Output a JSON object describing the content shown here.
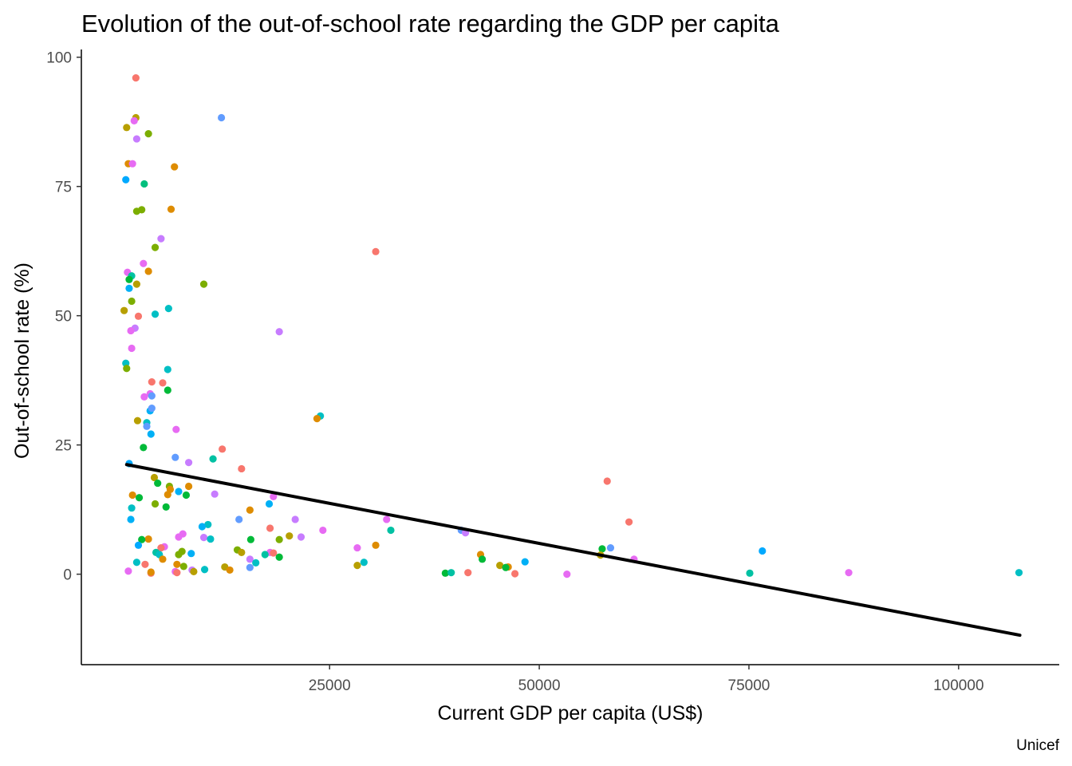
{
  "chart_data": {
    "type": "scatter",
    "title": "Evolution of the out-of-school rate regarding the GDP per capita",
    "xlabel": "Current GDP per capita (US$)",
    "ylabel": "Out-of-school rate (%)",
    "caption": "Unicef",
    "xlim": [
      -4600,
      112000
    ],
    "ylim": [
      -17.5,
      101.5
    ],
    "xticks": [
      25000,
      50000,
      75000,
      100000
    ],
    "yticks": [
      0,
      25,
      50,
      75,
      100
    ],
    "xtick_labels": [
      "25000",
      "50000",
      "75000",
      "100000"
    ],
    "ytick_labels": [
      "0",
      "25",
      "50",
      "75",
      "100"
    ],
    "grid": false,
    "legend": "none",
    "trend_line": {
      "x": [
        800,
        107300
      ],
      "y": [
        21.2,
        -11.8
      ],
      "color": "#000000"
    },
    "points": [
      {
        "x": 1900,
        "y": 96,
        "color": "#F8766D"
      },
      {
        "x": 12100,
        "y": 88.3,
        "color": "#619CFF"
      },
      {
        "x": 1900,
        "y": 88.3,
        "color": "#B79F00"
      },
      {
        "x": 1700,
        "y": 87.7,
        "color": "#E76BF3"
      },
      {
        "x": 800,
        "y": 86.4,
        "color": "#B79F00"
      },
      {
        "x": 3400,
        "y": 85.2,
        "color": "#7CAE00"
      },
      {
        "x": 2000,
        "y": 84.2,
        "color": "#C77CFF"
      },
      {
        "x": 1000,
        "y": 79.4,
        "color": "#DE8C00"
      },
      {
        "x": 1500,
        "y": 79.4,
        "color": "#E76BF3"
      },
      {
        "x": 6500,
        "y": 78.8,
        "color": "#DE8C00"
      },
      {
        "x": 700,
        "y": 76.3,
        "color": "#00A9FF"
      },
      {
        "x": 2900,
        "y": 75.5,
        "color": "#00BF7D"
      },
      {
        "x": 2000,
        "y": 70.2,
        "color": "#7CAE00"
      },
      {
        "x": 2600,
        "y": 70.5,
        "color": "#7CAE00"
      },
      {
        "x": 6100,
        "y": 70.6,
        "color": "#DE8C00"
      },
      {
        "x": 4900,
        "y": 64.9,
        "color": "#C77CFF"
      },
      {
        "x": 4200,
        "y": 63.2,
        "color": "#7CAE00"
      },
      {
        "x": 30500,
        "y": 62.4,
        "color": "#F8766D"
      },
      {
        "x": 2800,
        "y": 60.1,
        "color": "#E76BF3"
      },
      {
        "x": 3400,
        "y": 58.6,
        "color": "#DE8C00"
      },
      {
        "x": 900,
        "y": 58.4,
        "color": "#E76BF3"
      },
      {
        "x": 1400,
        "y": 57.7,
        "color": "#00C1A3"
      },
      {
        "x": 1100,
        "y": 57,
        "color": "#00BA38"
      },
      {
        "x": 10000,
        "y": 56.1,
        "color": "#7CAE00"
      },
      {
        "x": 2000,
        "y": 56.1,
        "color": "#B79F00"
      },
      {
        "x": 1100,
        "y": 55.3,
        "color": "#00B0F6"
      },
      {
        "x": 1400,
        "y": 52.8,
        "color": "#7CAE00"
      },
      {
        "x": 5800,
        "y": 51.4,
        "color": "#00BFC4"
      },
      {
        "x": 500,
        "y": 51,
        "color": "#B79F00"
      },
      {
        "x": 4200,
        "y": 50.3,
        "color": "#00BFC4"
      },
      {
        "x": 2200,
        "y": 49.9,
        "color": "#F8766D"
      },
      {
        "x": 1800,
        "y": 47.6,
        "color": "#C77CFF"
      },
      {
        "x": 1300,
        "y": 47.1,
        "color": "#E76BF3"
      },
      {
        "x": 19000,
        "y": 46.9,
        "color": "#C77CFF"
      },
      {
        "x": 1400,
        "y": 43.7,
        "color": "#E76BF3"
      },
      {
        "x": 700,
        "y": 40.8,
        "color": "#00BFC4"
      },
      {
        "x": 800,
        "y": 39.8,
        "color": "#7CAE00"
      },
      {
        "x": 5700,
        "y": 39.6,
        "color": "#00BFC4"
      },
      {
        "x": 3800,
        "y": 37.2,
        "color": "#F8766D"
      },
      {
        "x": 5100,
        "y": 37,
        "color": "#F8766D"
      },
      {
        "x": 5700,
        "y": 35.6,
        "color": "#00BA38"
      },
      {
        "x": 3600,
        "y": 34.9,
        "color": "#E76BF3"
      },
      {
        "x": 3800,
        "y": 34.5,
        "color": "#619CFF"
      },
      {
        "x": 2900,
        "y": 34.3,
        "color": "#E76BF3"
      },
      {
        "x": 3600,
        "y": 31.6,
        "color": "#00B0F6"
      },
      {
        "x": 3800,
        "y": 32.1,
        "color": "#619CFF"
      },
      {
        "x": 23900,
        "y": 30.6,
        "color": "#00BFC4"
      },
      {
        "x": 23500,
        "y": 30.1,
        "color": "#DE8C00"
      },
      {
        "x": 2100,
        "y": 29.7,
        "color": "#B79F00"
      },
      {
        "x": 3200,
        "y": 29.3,
        "color": "#00BFC4"
      },
      {
        "x": 3200,
        "y": 28.6,
        "color": "#619CFF"
      },
      {
        "x": 6700,
        "y": 28,
        "color": "#E76BF3"
      },
      {
        "x": 3700,
        "y": 27.1,
        "color": "#00B0F6"
      },
      {
        "x": 2800,
        "y": 24.5,
        "color": "#00BA38"
      },
      {
        "x": 12200,
        "y": 24.2,
        "color": "#F8766D"
      },
      {
        "x": 6600,
        "y": 22.6,
        "color": "#619CFF"
      },
      {
        "x": 11100,
        "y": 22.3,
        "color": "#00C1A3"
      },
      {
        "x": 8200,
        "y": 21.6,
        "color": "#C77CFF"
      },
      {
        "x": 1100,
        "y": 21.4,
        "color": "#00A9FF"
      },
      {
        "x": 14500,
        "y": 20.4,
        "color": "#F8766D"
      },
      {
        "x": 4100,
        "y": 18.7,
        "color": "#B79F00"
      },
      {
        "x": 58100,
        "y": 18,
        "color": "#F8766D"
      },
      {
        "x": 4500,
        "y": 17.6,
        "color": "#00BA38"
      },
      {
        "x": 5900,
        "y": 17,
        "color": "#7CAE00"
      },
      {
        "x": 8200,
        "y": 17,
        "color": "#DE8C00"
      },
      {
        "x": 6000,
        "y": 16.4,
        "color": "#DE8C00"
      },
      {
        "x": 7000,
        "y": 16,
        "color": "#00B0F6"
      },
      {
        "x": 5700,
        "y": 15.4,
        "color": "#DE8C00"
      },
      {
        "x": 7900,
        "y": 15.3,
        "color": "#00BA38"
      },
      {
        "x": 1500,
        "y": 15.3,
        "color": "#DE8C00"
      },
      {
        "x": 11300,
        "y": 15.5,
        "color": "#C77CFF"
      },
      {
        "x": 18300,
        "y": 15,
        "color": "#E76BF3"
      },
      {
        "x": 2300,
        "y": 14.8,
        "color": "#00BA38"
      },
      {
        "x": 17800,
        "y": 13.6,
        "color": "#00B0F6"
      },
      {
        "x": 4200,
        "y": 13.6,
        "color": "#7CAE00"
      },
      {
        "x": 5500,
        "y": 13,
        "color": "#00BA38"
      },
      {
        "x": 1400,
        "y": 12.8,
        "color": "#00BFC4"
      },
      {
        "x": 15500,
        "y": 12.4,
        "color": "#DE8C00"
      },
      {
        "x": 1300,
        "y": 10.6,
        "color": "#00B0F6"
      },
      {
        "x": 14200,
        "y": 10.6,
        "color": "#619CFF"
      },
      {
        "x": 20900,
        "y": 10.6,
        "color": "#C77CFF"
      },
      {
        "x": 31800,
        "y": 10.6,
        "color": "#E76BF3"
      },
      {
        "x": 60700,
        "y": 10.1,
        "color": "#F8766D"
      },
      {
        "x": 10500,
        "y": 9.6,
        "color": "#00BFC4"
      },
      {
        "x": 9800,
        "y": 9.2,
        "color": "#00B0F6"
      },
      {
        "x": 17900,
        "y": 8.9,
        "color": "#F8766D"
      },
      {
        "x": 32300,
        "y": 8.5,
        "color": "#00C1A3"
      },
      {
        "x": 24200,
        "y": 8.5,
        "color": "#E76BF3"
      },
      {
        "x": 40700,
        "y": 8.5,
        "color": "#619CFF"
      },
      {
        "x": 41200,
        "y": 8,
        "color": "#C77CFF"
      },
      {
        "x": 7500,
        "y": 7.8,
        "color": "#E76BF3"
      },
      {
        "x": 7000,
        "y": 7.2,
        "color": "#E76BF3"
      },
      {
        "x": 20200,
        "y": 7.4,
        "color": "#B79F00"
      },
      {
        "x": 21600,
        "y": 7.2,
        "color": "#C77CFF"
      },
      {
        "x": 10000,
        "y": 7.1,
        "color": "#C77CFF"
      },
      {
        "x": 10800,
        "y": 6.8,
        "color": "#00BFC4"
      },
      {
        "x": 15600,
        "y": 6.7,
        "color": "#00BA38"
      },
      {
        "x": 3400,
        "y": 6.8,
        "color": "#DE8C00"
      },
      {
        "x": 2600,
        "y": 6.7,
        "color": "#00BA38"
      },
      {
        "x": 19000,
        "y": 6.7,
        "color": "#7CAE00"
      },
      {
        "x": 2200,
        "y": 5.6,
        "color": "#00A9FF"
      },
      {
        "x": 5300,
        "y": 5.3,
        "color": "#E76BF3"
      },
      {
        "x": 4900,
        "y": 5.1,
        "color": "#F8766D"
      },
      {
        "x": 30500,
        "y": 5.6,
        "color": "#DE8C00"
      },
      {
        "x": 28300,
        "y": 5.1,
        "color": "#E76BF3"
      },
      {
        "x": 57500,
        "y": 4.9,
        "color": "#00BA38"
      },
      {
        "x": 58500,
        "y": 5.1,
        "color": "#619CFF"
      },
      {
        "x": 76600,
        "y": 4.5,
        "color": "#00A9FF"
      },
      {
        "x": 14000,
        "y": 4.7,
        "color": "#7CAE00"
      },
      {
        "x": 7400,
        "y": 4.4,
        "color": "#7CAE00"
      },
      {
        "x": 14500,
        "y": 4.2,
        "color": "#B79F00"
      },
      {
        "x": 17900,
        "y": 4.2,
        "color": "#E76BF3"
      },
      {
        "x": 18300,
        "y": 4.1,
        "color": "#F8766D"
      },
      {
        "x": 8500,
        "y": 4,
        "color": "#00B0F6"
      },
      {
        "x": 4300,
        "y": 4.2,
        "color": "#00C1A3"
      },
      {
        "x": 4700,
        "y": 3.8,
        "color": "#00BFC4"
      },
      {
        "x": 7000,
        "y": 3.8,
        "color": "#7CAE00"
      },
      {
        "x": 17300,
        "y": 3.8,
        "color": "#00C1A3"
      },
      {
        "x": 19000,
        "y": 3.3,
        "color": "#00BA38"
      },
      {
        "x": 43000,
        "y": 3.8,
        "color": "#DE8C00"
      },
      {
        "x": 57300,
        "y": 3.7,
        "color": "#B79F00"
      },
      {
        "x": 5100,
        "y": 2.9,
        "color": "#DE8C00"
      },
      {
        "x": 15500,
        "y": 2.9,
        "color": "#C77CFF"
      },
      {
        "x": 43200,
        "y": 2.9,
        "color": "#00BA38"
      },
      {
        "x": 61300,
        "y": 2.9,
        "color": "#E76BF3"
      },
      {
        "x": 2000,
        "y": 2.3,
        "color": "#00BFC4"
      },
      {
        "x": 16200,
        "y": 2.2,
        "color": "#00BFC4"
      },
      {
        "x": 29100,
        "y": 2.3,
        "color": "#00BFC4"
      },
      {
        "x": 48300,
        "y": 2.4,
        "color": "#00B0F6"
      },
      {
        "x": 3000,
        "y": 1.9,
        "color": "#F8766D"
      },
      {
        "x": 6800,
        "y": 1.9,
        "color": "#DE8C00"
      },
      {
        "x": 7600,
        "y": 1.5,
        "color": "#7CAE00"
      },
      {
        "x": 28300,
        "y": 1.7,
        "color": "#B79F00"
      },
      {
        "x": 45300,
        "y": 1.7,
        "color": "#B79F00"
      },
      {
        "x": 46300,
        "y": 1.4,
        "color": "#DE8C00"
      },
      {
        "x": 46000,
        "y": 1.3,
        "color": "#00BA38"
      },
      {
        "x": 15500,
        "y": 1.3,
        "color": "#619CFF"
      },
      {
        "x": 12500,
        "y": 1.4,
        "color": "#B79F00"
      },
      {
        "x": 13100,
        "y": 0.8,
        "color": "#DE8C00"
      },
      {
        "x": 8600,
        "y": 0.8,
        "color": "#C77CFF"
      },
      {
        "x": 8800,
        "y": 0.5,
        "color": "#B79F00"
      },
      {
        "x": 10100,
        "y": 0.9,
        "color": "#00BFC4"
      },
      {
        "x": 1000,
        "y": 0.6,
        "color": "#E76BF3"
      },
      {
        "x": 3700,
        "y": 0.2,
        "color": "#F8766D"
      },
      {
        "x": 3700,
        "y": 0.4,
        "color": "#DE8C00"
      },
      {
        "x": 6600,
        "y": 0.5,
        "color": "#E76BF3"
      },
      {
        "x": 6800,
        "y": 0.3,
        "color": "#F8766D"
      },
      {
        "x": 38800,
        "y": 0.2,
        "color": "#00BA38"
      },
      {
        "x": 39500,
        "y": 0.3,
        "color": "#00C1A3"
      },
      {
        "x": 41500,
        "y": 0.3,
        "color": "#F8766D"
      },
      {
        "x": 47100,
        "y": 0.1,
        "color": "#F8766D"
      },
      {
        "x": 53300,
        "y": 0.0,
        "color": "#E76BF3"
      },
      {
        "x": 75100,
        "y": 0.2,
        "color": "#00C1A3"
      },
      {
        "x": 86900,
        "y": 0.3,
        "color": "#E76BF3"
      },
      {
        "x": 107200,
        "y": 0.3,
        "color": "#00BFC4"
      }
    ]
  }
}
